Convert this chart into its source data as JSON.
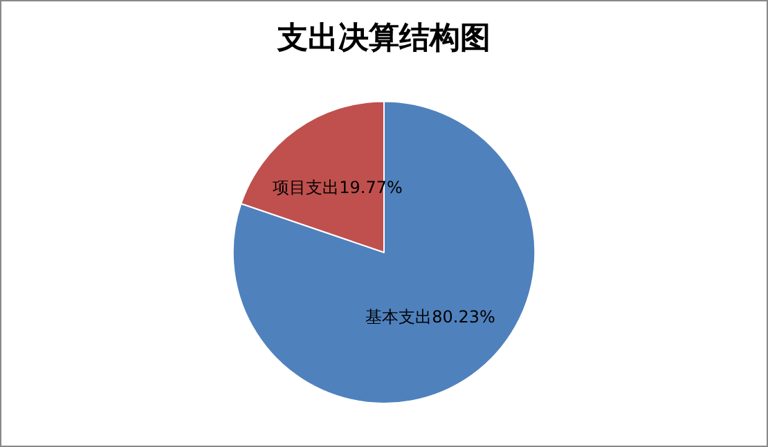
{
  "chart_data": {
    "type": "pie",
    "title": "支出决算结构图",
    "categories": [
      "基本支出",
      "项目支出"
    ],
    "values": [
      80.23,
      19.77
    ],
    "colors": [
      "#4f81bd",
      "#c0504d"
    ],
    "value_labels": [
      "80.23%",
      "19.77%"
    ],
    "legend": false
  }
}
